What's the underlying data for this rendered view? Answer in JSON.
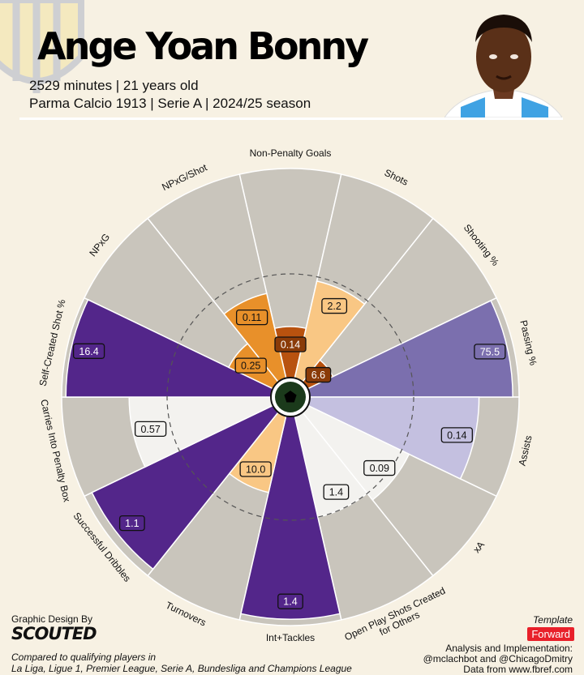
{
  "header": {
    "player_name": "Ange Yoan Bonny",
    "line1": "2529 minutes | 21 years old",
    "line2": "Parma Calcio 1913 | Serie A | 2024/25 season"
  },
  "chart_data": {
    "type": "pizza",
    "title": "Ange Yoan Bonny",
    "value_scale": "percentile rank 0-100 (bar length); printed labels are raw per-90 values",
    "reference_ring_percentile": 50,
    "categories": [
      {
        "group": "shooting",
        "color": "#f9c784"
      },
      {
        "group": "passing",
        "color": "#7b6fae"
      },
      {
        "group": "possession",
        "color": "#f3f2ef"
      },
      {
        "group": "defending",
        "color": "#53268a"
      }
    ],
    "metrics": [
      {
        "label": "Non-Penalty Goals",
        "value": "0.14",
        "percentile": 25,
        "fill": "#b8520f",
        "tag_fill": "#8a3b08",
        "tag_text": "#ffffff"
      },
      {
        "label": "Shots",
        "value": "2.2",
        "percentile": 48,
        "fill": "#f9c784",
        "tag_fill": "#f9c784",
        "tag_text": "#111111"
      },
      {
        "label": "Shooting %",
        "value": "6.6",
        "percentile": 14,
        "fill": "#b8520f",
        "tag_fill": "#8a3b08",
        "tag_text": "#ffffff"
      },
      {
        "label": "Passing %",
        "value": "75.5",
        "percentile": 97,
        "fill": "#7b6fae",
        "tag_fill": "#7b6fae",
        "tag_text": "#ffffff"
      },
      {
        "label": "Assists",
        "value": "0.14",
        "percentile": 81,
        "fill": "#c4c0e0",
        "tag_fill": "#c4c0e0",
        "tag_text": "#111111"
      },
      {
        "label": "xA",
        "value": "0.09",
        "percentile": 54,
        "fill": "#f3f2ef",
        "tag_fill": "#f3f2ef",
        "tag_text": "#111111"
      },
      {
        "label": "Open Play Shots Created for Others",
        "value": "1.4",
        "percentile": 50,
        "fill": "#f3f2ef",
        "tag_fill": "#f3f2ef",
        "tag_text": "#111111"
      },
      {
        "label": "Int+Tackles",
        "value": "1.4",
        "percentile": 97,
        "fill": "#53268a",
        "tag_fill": "#53268a",
        "tag_text": "#ffffff"
      },
      {
        "label": "Turnovers",
        "value": "10.0",
        "percentile": 38,
        "fill": "#f9c784",
        "tag_fill": "#f9c784",
        "tag_text": "#111111"
      },
      {
        "label": "Successful Dribbles",
        "value": "1.1",
        "percentile": 96,
        "fill": "#53268a",
        "tag_fill": "#53268a",
        "tag_text": "#ffffff"
      },
      {
        "label": "Carries Into Penalty Box",
        "value": "0.57",
        "percentile": 68,
        "fill": "#f3f2ef",
        "tag_fill": "#f3f2ef",
        "tag_text": "#111111"
      },
      {
        "label": "Self-Created Shot %",
        "value": "16.4",
        "percentile": 98,
        "fill": "#53268a",
        "tag_fill": "#53268a",
        "tag_text": "#ffffff"
      },
      {
        "label": "NPxG",
        "value": "0.25",
        "percentile": 24,
        "fill": "#e8902a",
        "tag_fill": "#e8902a",
        "tag_text": "#111111"
      },
      {
        "label": "NPxG/Shot",
        "value": "0.11",
        "percentile": 42,
        "fill": "#e8902a",
        "tag_fill": "#e8902a",
        "tag_text": "#111111"
      }
    ]
  },
  "colors": {
    "background": "#f7f1e3",
    "slice_background": "#c9c5bc",
    "center_ball": "#1b3a1b",
    "badge": "#e8202a"
  },
  "footer": {
    "design_by": "Graphic Design By",
    "brand": "SCOUTED",
    "compared_1": "Compared to qualifying players in",
    "compared_2": "La Liga, Ligue 1, Premier League, Serie A, Bundesliga and Champions League",
    "template_label": "Template",
    "template_value": "Forward",
    "credit_1": "Analysis and Implementation:",
    "credit_2": "@mclachbot and @ChicagoDmitry",
    "credit_3": "Data from www.fbref.com"
  }
}
